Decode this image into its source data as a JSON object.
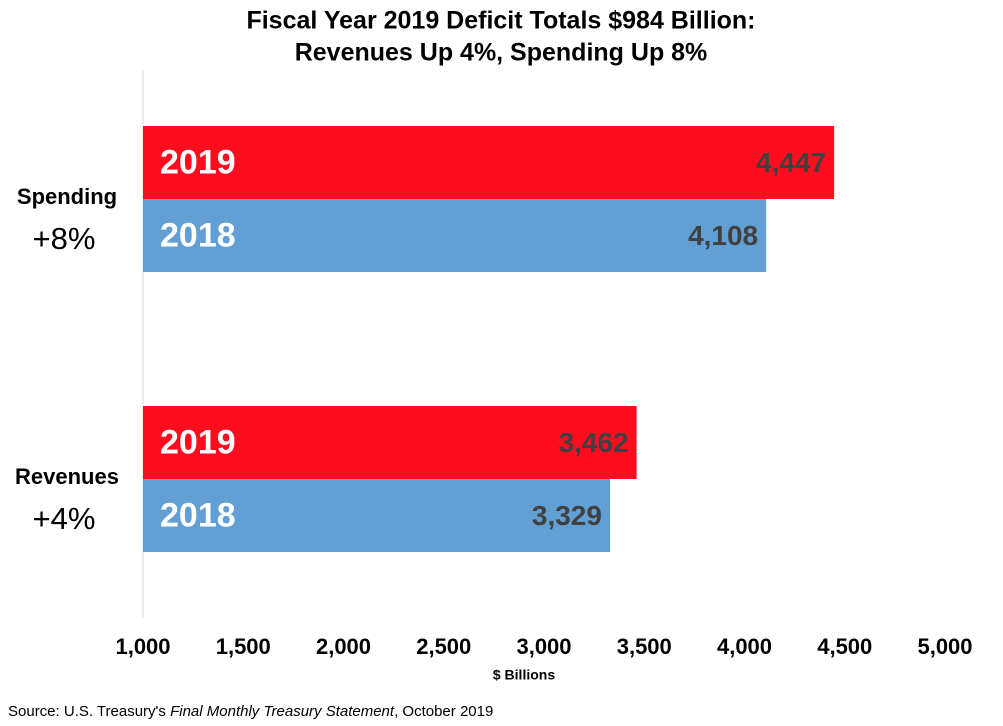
{
  "chart_data": {
    "type": "bar",
    "orientation": "horizontal",
    "title": [
      "Fiscal Year 2019 Deficit Totals $984 Billion:",
      "Revenues Up 4%, Spending Up 8%"
    ],
    "categories": [
      "Spending",
      "Revenues"
    ],
    "category_changes": [
      "+8%",
      "+4%"
    ],
    "series": [
      {
        "name": "2019",
        "color": "#ff0d1f",
        "values": [
          4447,
          3462
        ],
        "value_labels": [
          "4,447",
          "3,462"
        ]
      },
      {
        "name": "2018",
        "color": "#629fd4",
        "values": [
          4108,
          3329
        ],
        "value_labels": [
          "4,108",
          "3,329"
        ]
      }
    ],
    "xlim": [
      1000,
      5000
    ],
    "xticks": [
      {
        "value": 1000,
        "label": "1,000"
      },
      {
        "value": 1500,
        "label": "1,500"
      },
      {
        "value": 2000,
        "label": "2,000"
      },
      {
        "value": 2500,
        "label": "2,500"
      },
      {
        "value": 3000,
        "label": "3,000"
      },
      {
        "value": 3500,
        "label": "3,500"
      },
      {
        "value": 4000,
        "label": "4,000"
      },
      {
        "value": 4500,
        "label": "4,500"
      },
      {
        "value": 5000,
        "label": "5,000"
      }
    ],
    "xlabel": "$ Billions",
    "grid": false,
    "source": {
      "prefix": "Source: U.S. Treasury's ",
      "italic": "Final Monthly Treasury Statement",
      "suffix": ", October 2019"
    }
  }
}
